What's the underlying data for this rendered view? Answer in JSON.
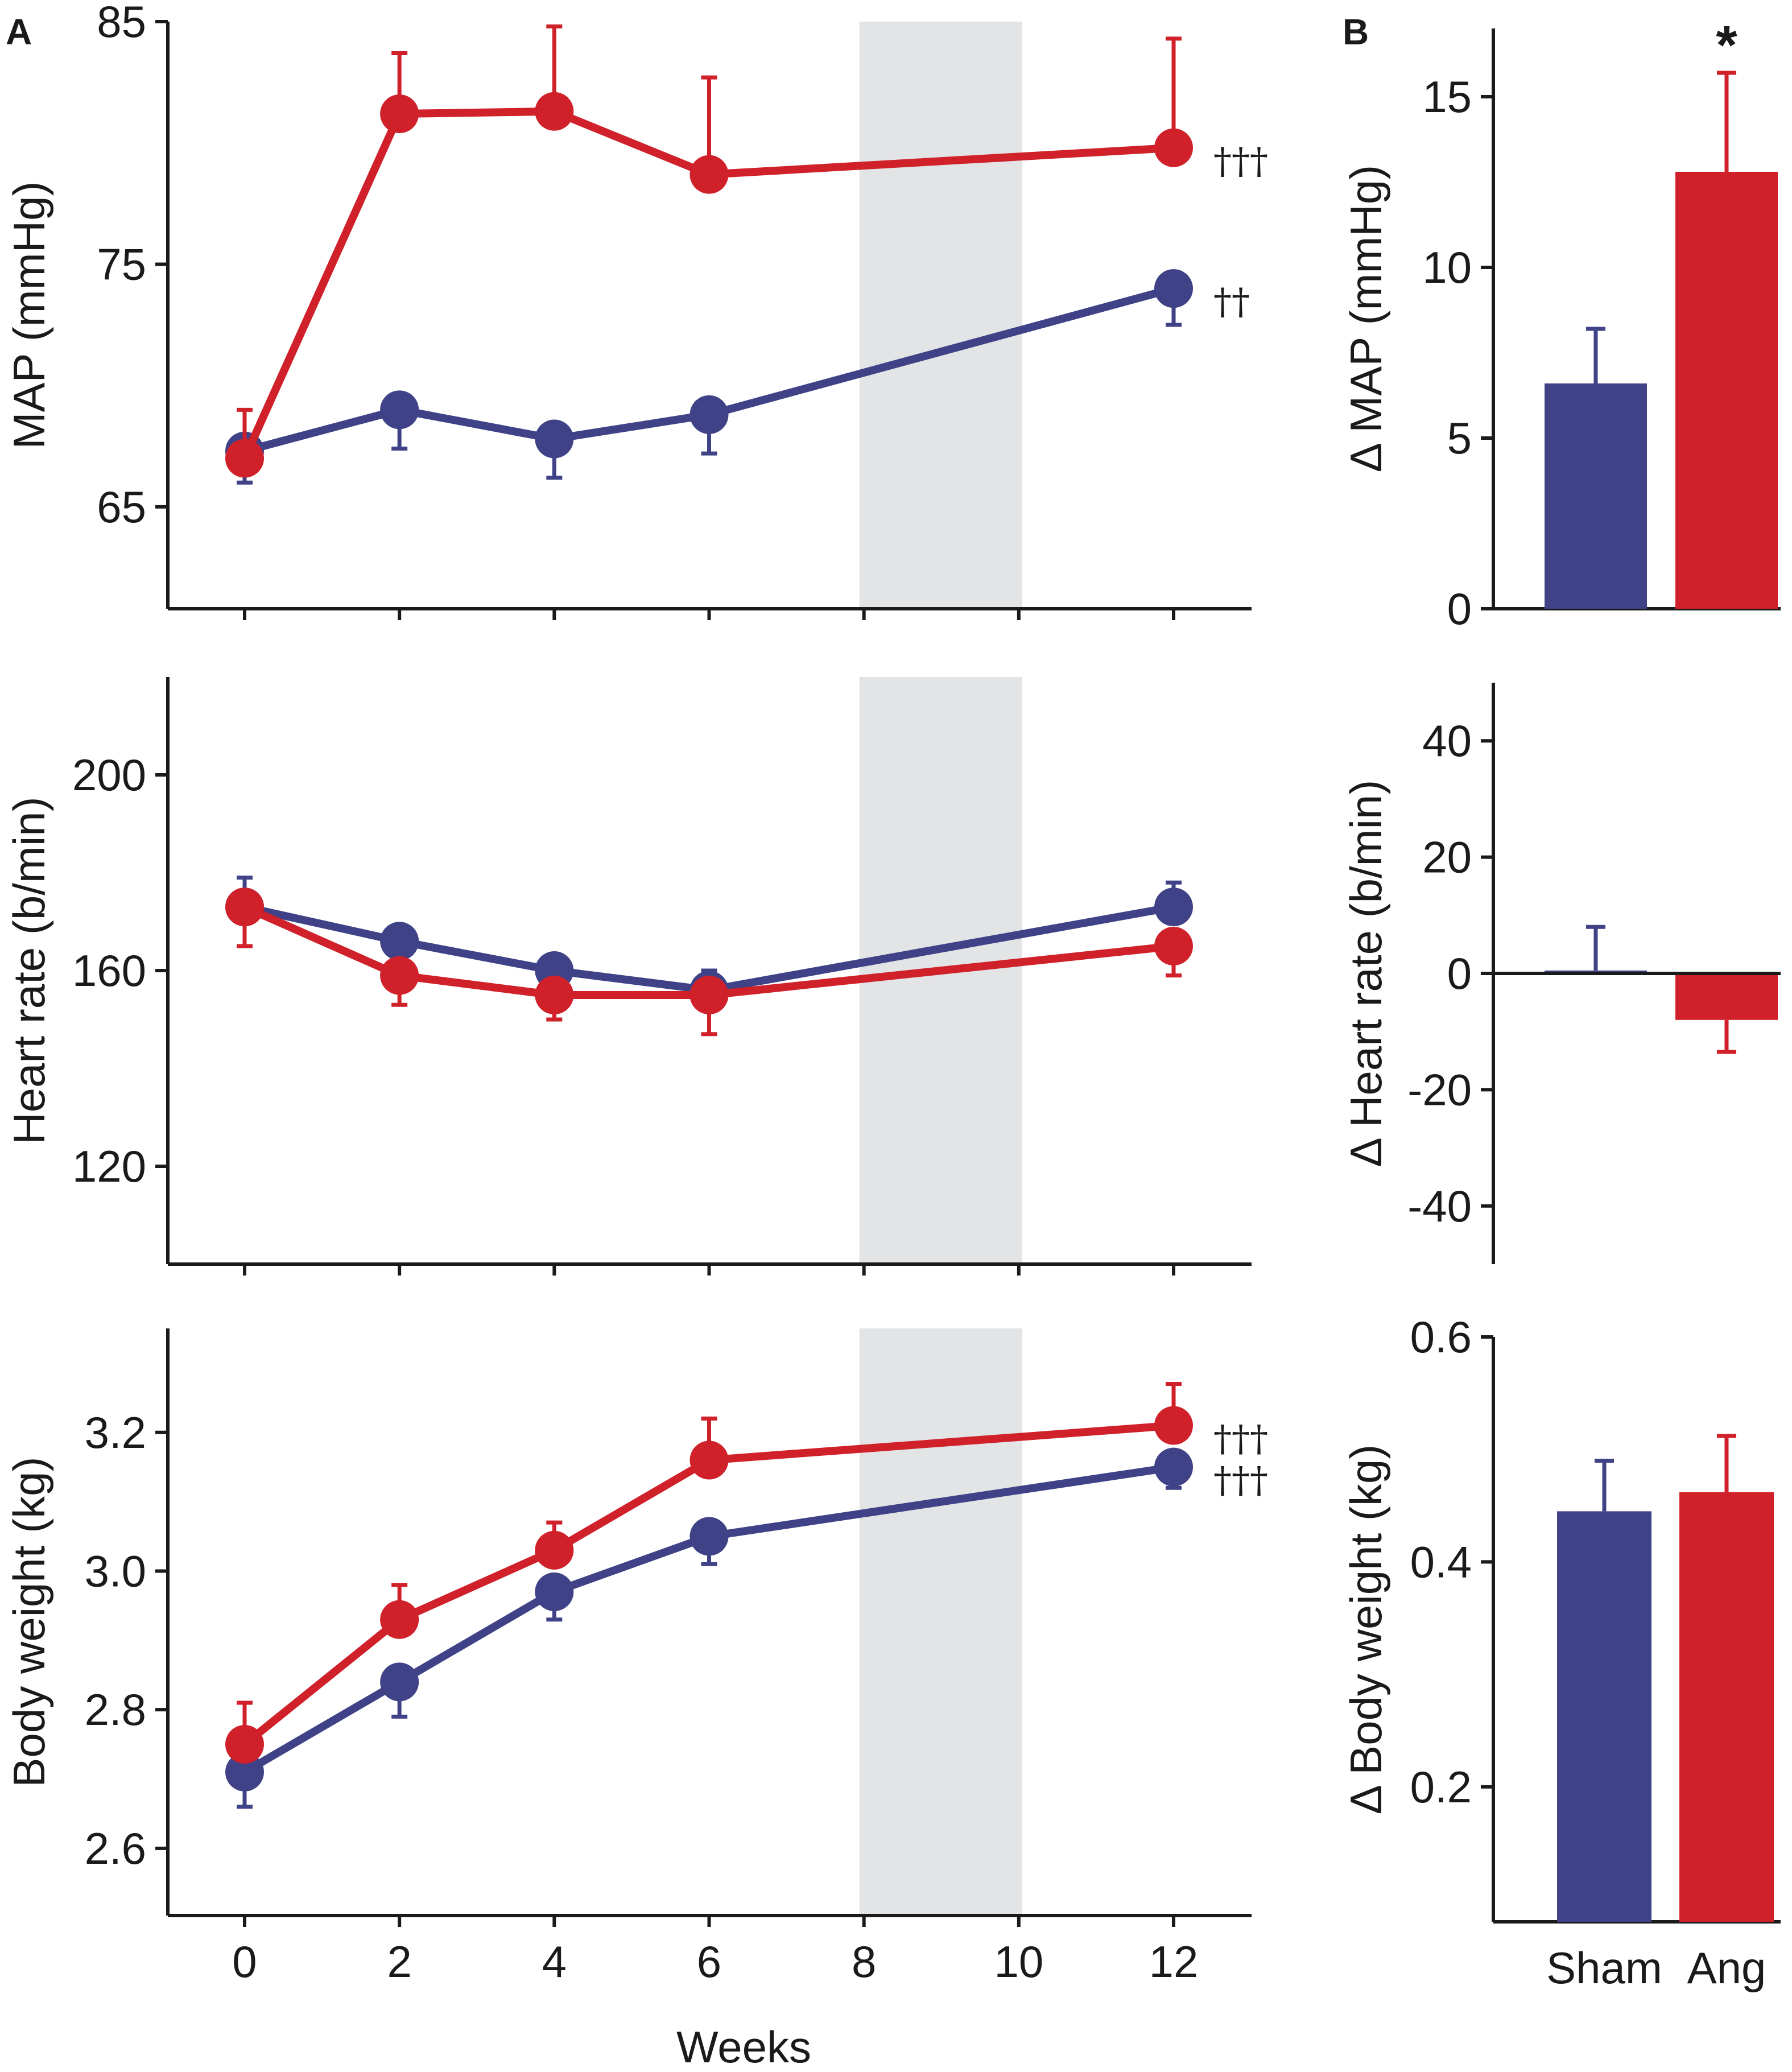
{
  "figure": {
    "panel_labels": {
      "a": "A",
      "b": "B"
    },
    "colors": {
      "sham": "#3f4286",
      "ang": "#d0202a",
      "shade": "#e3e4e6",
      "axis": "#1a1a1a"
    }
  },
  "chart_data": [
    {
      "id": "map-time",
      "type": "line",
      "panel": "A",
      "ylabel": "MAP (mmHg)",
      "xlabel": "",
      "x": [
        0,
        2,
        4,
        6,
        12
      ],
      "xlim": [
        -1,
        13.5
      ],
      "ylim": [
        60.8,
        85
      ],
      "yticks": [
        65,
        75,
        85
      ],
      "xticks": [
        0,
        2,
        4,
        6,
        8,
        10,
        12
      ],
      "shaded_region": [
        8,
        10
      ],
      "series": [
        {
          "name": "Sham",
          "color": "#3f4286",
          "values": [
            67.3,
            69.0,
            67.8,
            68.8,
            74.0
          ],
          "errors": [
            1.3,
            1.6,
            1.6,
            1.6,
            1.5
          ],
          "error_side": "down",
          "significance": "††"
        },
        {
          "name": "Ang",
          "color": "#d0202a",
          "values": [
            67.0,
            81.2,
            81.3,
            78.7,
            79.8
          ],
          "errors": [
            2.0,
            2.5,
            3.5,
            4.0,
            4.5
          ],
          "error_side": "up",
          "significance": "†††"
        }
      ]
    },
    {
      "id": "hr-time",
      "type": "line",
      "panel": "A",
      "ylabel": "Heart rate (b/min)",
      "xlabel": "",
      "x": [
        0,
        2,
        4,
        6,
        12
      ],
      "xlim": [
        -1,
        13.5
      ],
      "ylim": [
        100,
        220
      ],
      "yticks": [
        120,
        160,
        200
      ],
      "xticks": [
        0,
        2,
        4,
        6,
        8,
        10,
        12
      ],
      "shaded_region": [
        8,
        10
      ],
      "series": [
        {
          "name": "Sham",
          "color": "#3f4286",
          "values": [
            173,
            166,
            160,
            156,
            173
          ],
          "errors": [
            6,
            3,
            3,
            4,
            5
          ],
          "error_side": "up"
        },
        {
          "name": "Ang",
          "color": "#d0202a",
          "values": [
            173,
            159,
            155,
            155,
            165
          ],
          "errors": [
            8,
            6,
            5,
            8,
            6
          ],
          "error_side": "down"
        }
      ]
    },
    {
      "id": "bw-time",
      "type": "line",
      "panel": "A",
      "ylabel": "Body weight (kg)",
      "xlabel": "Weeks",
      "x": [
        0,
        2,
        4,
        6,
        12
      ],
      "xlim": [
        -1,
        13.5
      ],
      "ylim": [
        2.503,
        3.35
      ],
      "yticks": [
        2.6,
        2.8,
        3.0,
        3.2
      ],
      "ytick_labels": [
        "2.6",
        "2.8",
        "3.0",
        "3.2"
      ],
      "xticks": [
        0,
        2,
        4,
        6,
        8,
        10,
        12
      ],
      "shaded_region": [
        8,
        10
      ],
      "series": [
        {
          "name": "Sham",
          "color": "#3f4286",
          "values": [
            2.71,
            2.84,
            2.97,
            3.05,
            3.15
          ],
          "errors": [
            0.05,
            0.05,
            0.04,
            0.04,
            0.03
          ],
          "error_side": "down",
          "significance": "†††"
        },
        {
          "name": "Ang",
          "color": "#d0202a",
          "values": [
            2.75,
            2.93,
            3.03,
            3.16,
            3.21
          ],
          "errors": [
            0.06,
            0.05,
            0.04,
            0.06,
            0.06
          ],
          "error_side": "up",
          "significance": "†††"
        }
      ]
    },
    {
      "id": "map-delta",
      "type": "bar",
      "panel": "B",
      "ylabel": "Δ MAP (mmHg)",
      "categories": [
        "Sham",
        "Ang"
      ],
      "values": [
        6.6,
        12.8
      ],
      "errors": [
        1.6,
        2.9
      ],
      "colors": [
        "#3f4286",
        "#d0202a"
      ],
      "ylim": [
        0,
        17
      ],
      "yticks": [
        0,
        5,
        10,
        15
      ],
      "significance": [
        "",
        "*"
      ]
    },
    {
      "id": "hr-delta",
      "type": "bar",
      "panel": "B",
      "ylabel": "Δ Heart rate (b/min)",
      "categories": [
        "Sham",
        "Ang"
      ],
      "values": [
        0.5,
        -8
      ],
      "errors": [
        7.5,
        5.5
      ],
      "colors": [
        "#3f4286",
        "#d0202a"
      ],
      "ylim": [
        -50,
        50
      ],
      "yticks": [
        -40,
        -20,
        0,
        20,
        40
      ],
      "zero_line": true
    },
    {
      "id": "bw-delta",
      "type": "bar",
      "panel": "B",
      "ylabel": "Δ Body weight (kg)",
      "xlabel": "",
      "categories": [
        "Sham",
        "Ang"
      ],
      "values": [
        0.445,
        0.462
      ],
      "errors": [
        0.045,
        0.05
      ],
      "colors": [
        "#3f4286",
        "#d0202a"
      ],
      "ylim": [
        0.08,
        0.6
      ],
      "yticks": [
        0.2,
        0.4,
        0.6
      ],
      "show_category_labels": true
    }
  ]
}
